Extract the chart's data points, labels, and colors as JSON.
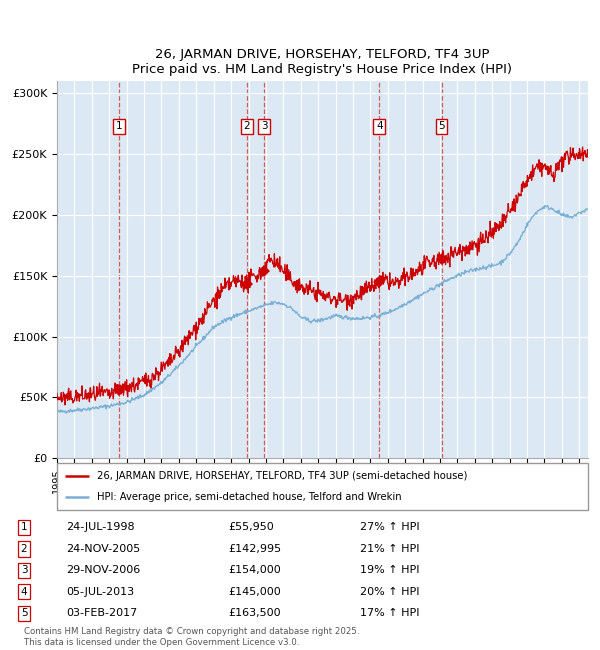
{
  "title": "26, JARMAN DRIVE, HORSEHAY, TELFORD, TF4 3UP",
  "subtitle": "Price paid vs. HM Land Registry's House Price Index (HPI)",
  "red_line_color": "#cc0000",
  "blue_line_color": "#7bafd4",
  "background_color": "#dce9f5",
  "plot_bg_color": "#dce9f5",
  "grid_color": "#ffffff",
  "ylim": [
    0,
    310000
  ],
  "yticks": [
    0,
    50000,
    100000,
    150000,
    200000,
    250000,
    300000
  ],
  "ytick_labels": [
    "£0",
    "£50K",
    "£100K",
    "£150K",
    "£200K",
    "£250K",
    "£300K"
  ],
  "sale_dates_num": [
    1998.56,
    2005.9,
    2006.91,
    2013.51,
    2017.09
  ],
  "sale_prices": [
    55950,
    142995,
    154000,
    145000,
    163500
  ],
  "sale_labels": [
    "1",
    "2",
    "3",
    "4",
    "5"
  ],
  "sale_hpi_pct": [
    "27% ↑ HPI",
    "21% ↑ HPI",
    "19% ↑ HPI",
    "20% ↑ HPI",
    "17% ↑ HPI"
  ],
  "sale_dates_str": [
    "24-JUL-1998",
    "24-NOV-2005",
    "29-NOV-2006",
    "05-JUL-2013",
    "03-FEB-2017"
  ],
  "sale_prices_str": [
    "£55,950",
    "£142,995",
    "£154,000",
    "£145,000",
    "£163,500"
  ],
  "legend_red_label": "26, JARMAN DRIVE, HORSEHAY, TELFORD, TF4 3UP (semi-detached house)",
  "legend_blue_label": "HPI: Average price, semi-detached house, Telford and Wrekin",
  "footnote": "Contains HM Land Registry data © Crown copyright and database right 2025.\nThis data is licensed under the Open Government Licence v3.0.",
  "xmin": 1995.0,
  "xmax": 2025.5
}
